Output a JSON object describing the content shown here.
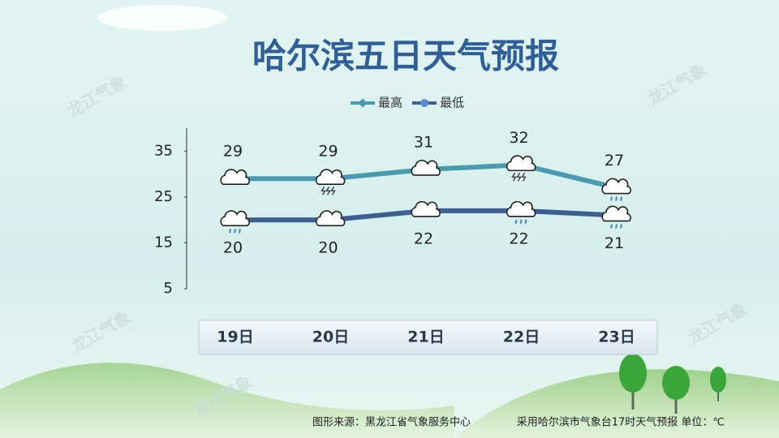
{
  "chart_data": {
    "type": "line",
    "title": "哈尔滨五日天气预报",
    "categories": [
      "19日",
      "20日",
      "21日",
      "22日",
      "23日"
    ],
    "series": [
      {
        "name": "最高",
        "color": "#4a9bb0",
        "values": [
          29,
          29,
          31,
          32,
          27
        ]
      },
      {
        "name": "最低",
        "color": "#3d5f92",
        "values": [
          20,
          20,
          22,
          22,
          21
        ]
      }
    ],
    "ylim": [
      5,
      40
    ],
    "yticks": [
      5,
      15,
      25,
      35
    ],
    "grid": false,
    "legend": "top",
    "watermark": "龙江气象",
    "source": "图形来源：黑龙江省气象服务中心",
    "note": "采用哈尔滨市气象台17时天气预报 单位：℃"
  }
}
